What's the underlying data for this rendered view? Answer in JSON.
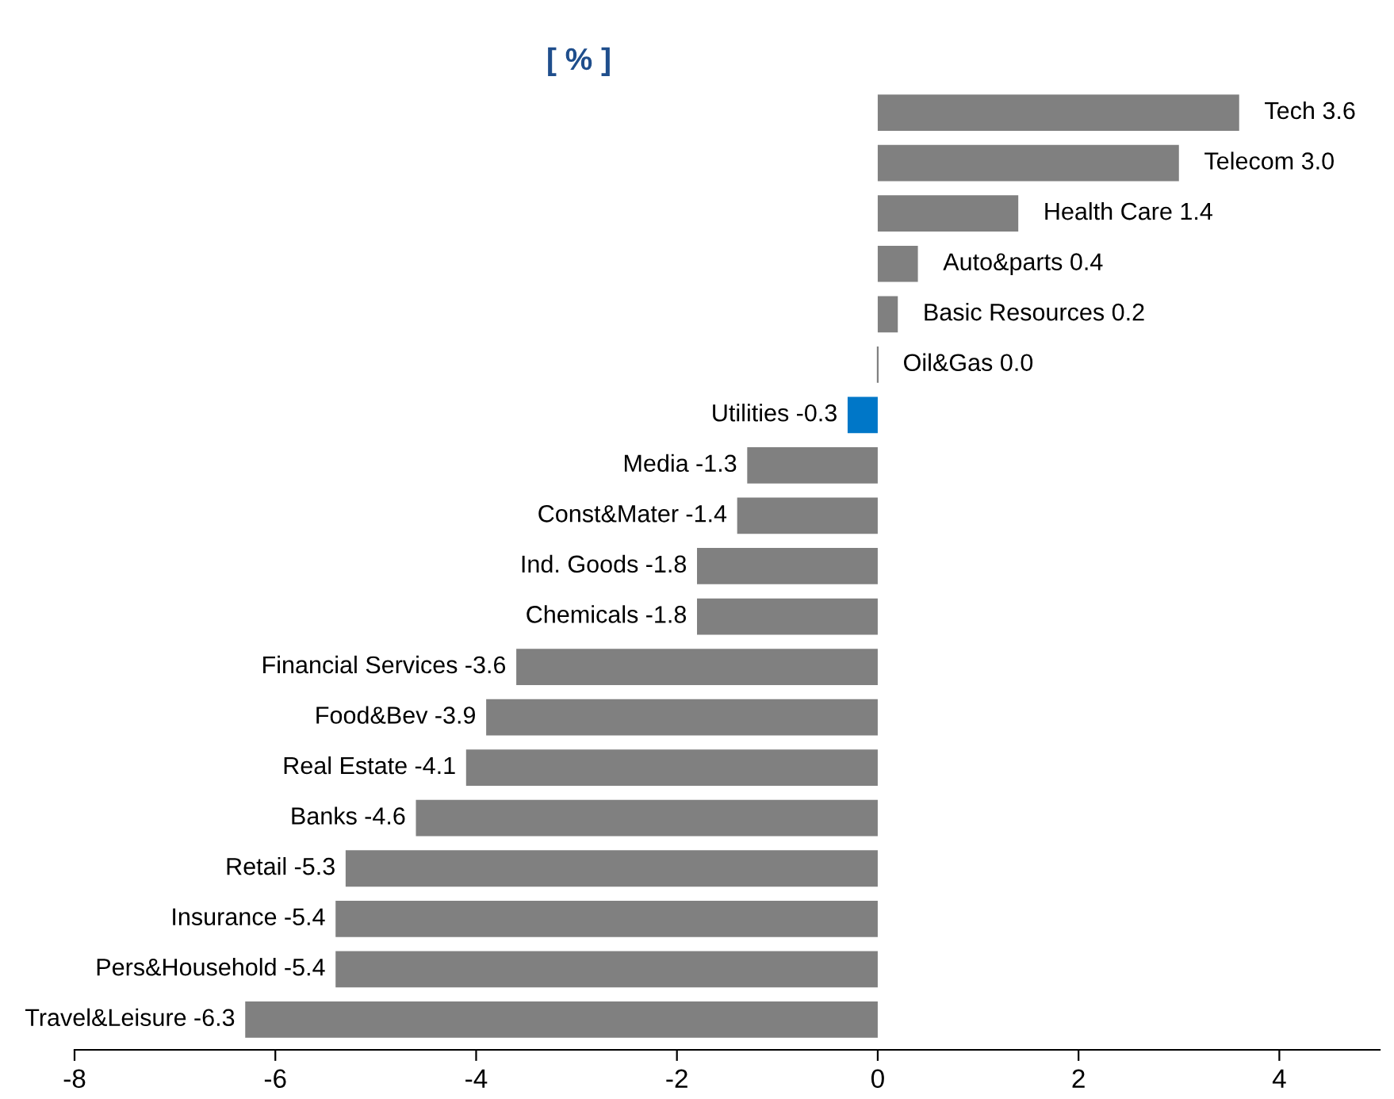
{
  "chart_data": {
    "type": "bar",
    "orientation": "horizontal",
    "title": "[ % ]",
    "categories": [
      "Tech",
      "Telecom",
      "Health Care",
      "Auto&parts",
      "Basic Resources",
      "Oil&Gas",
      "Utilities",
      "Media",
      "Const&Mater",
      "Ind. Goods",
      "Chemicals",
      "Financial Services",
      "Food&Bev",
      "Real Estate",
      "Banks",
      "Retail",
      "Insurance",
      "Pers&Household",
      "Travel&Leisure"
    ],
    "values": [
      3.6,
      3.0,
      1.4,
      0.4,
      0.2,
      0.0,
      -0.3,
      -1.3,
      -1.4,
      -1.8,
      -1.8,
      -3.6,
      -3.9,
      -4.1,
      -4.6,
      -5.3,
      -5.4,
      -5.4,
      -6.3
    ],
    "value_labels": [
      "3.6",
      "3.0",
      "1.4",
      "0.4",
      "0.2",
      "0.0",
      "-0.3",
      "-1.3",
      "-1.4",
      "-1.8",
      "-1.8",
      "-3.6",
      "-3.9",
      "-4.1",
      "-4.6",
      "-5.3",
      "-5.4",
      "-5.4",
      "-6.3"
    ],
    "colors": [
      "#808080",
      "#808080",
      "#808080",
      "#808080",
      "#808080",
      "#808080",
      "#0077c8",
      "#808080",
      "#808080",
      "#808080",
      "#808080",
      "#808080",
      "#808080",
      "#808080",
      "#808080",
      "#808080",
      "#808080",
      "#808080",
      "#808080"
    ],
    "xlim": [
      -8,
      5
    ],
    "xticks": [
      {
        "value": -8,
        "label": "-8"
      },
      {
        "value": -6,
        "label": "-6"
      },
      {
        "value": -4,
        "label": "-4"
      },
      {
        "value": -2,
        "label": "-2"
      },
      {
        "value": 0,
        "label": "0"
      },
      {
        "value": 2,
        "label": "2"
      },
      {
        "value": 4,
        "label": "4"
      }
    ],
    "grid": false,
    "legend": false
  }
}
